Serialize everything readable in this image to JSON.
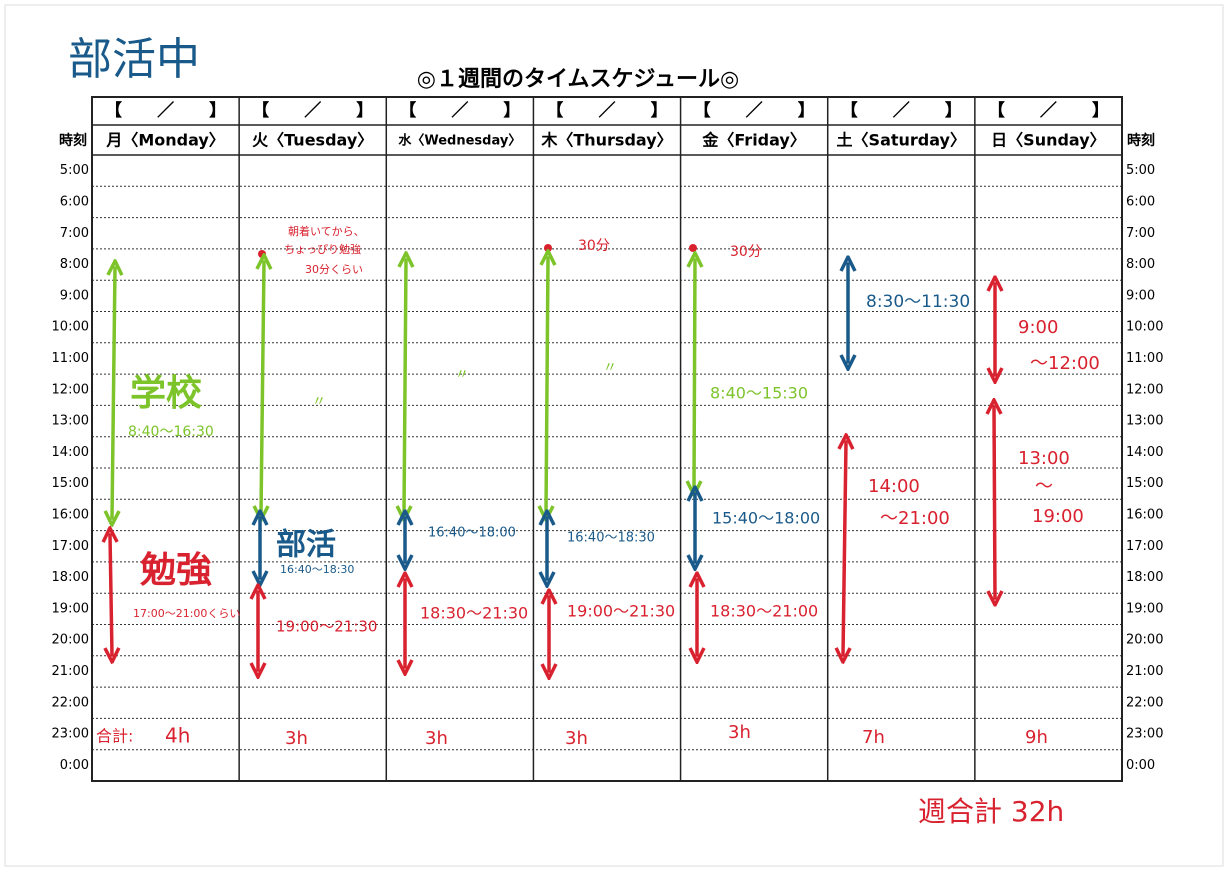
{
  "handwritten_header": "部活中",
  "title": "◎１週間のタイムスケジュール◎",
  "time_header": "時刻",
  "times": [
    "5:00",
    "6:00",
    "7:00",
    "8:00",
    "9:00",
    "10:00",
    "11:00",
    "12:00",
    "13:00",
    "14:00",
    "15:00",
    "16:00",
    "17:00",
    "18:00",
    "19:00",
    "20:00",
    "21:00",
    "22:00",
    "23:00",
    "0:00"
  ],
  "columns": [
    {
      "date": "【　／　】",
      "day": "月〈Monday〉",
      "notes": [
        "学校",
        "8:40〜16:30",
        "勉強",
        "17:00〜21:00くらい",
        "合計:",
        "4h"
      ]
    },
    {
      "date": "【　／　】",
      "day": "火〈Tuesday〉",
      "notes": [
        "朝着いてから、",
        "ちょっぴり勉強",
        "30分くらい",
        "〃",
        "部活",
        "16:40〜18:30",
        "19:00〜21:30",
        "3h"
      ]
    },
    {
      "date": "【　／　】",
      "day": "水〈Wednesday〉",
      "notes": [
        "〃",
        "16:40〜18:00",
        "18:30〜21:30",
        "3h"
      ]
    },
    {
      "date": "【　／　】",
      "day": "木〈Thursday〉",
      "notes": [
        "30分",
        "〃",
        "16:40〜18:30",
        "19:00〜21:30",
        "3h"
      ]
    },
    {
      "date": "【　／　】",
      "day": "金〈Friday〉",
      "notes": [
        "30分",
        "8:40〜15:30",
        "15:40〜18:00",
        "18:30〜21:00",
        "3h"
      ]
    },
    {
      "date": "【　／　】",
      "day": "土〈Saturday〉",
      "notes": [
        "8:30〜11:30",
        "14:00",
        "〜21:00",
        "7h"
      ]
    },
    {
      "date": "【　／　】",
      "day": "日〈Sunday〉",
      "notes": [
        "9:00",
        "〜12:00",
        "13:00",
        "〜",
        "19:00",
        "9h"
      ]
    }
  ],
  "weekly_total": "週合計 32h"
}
